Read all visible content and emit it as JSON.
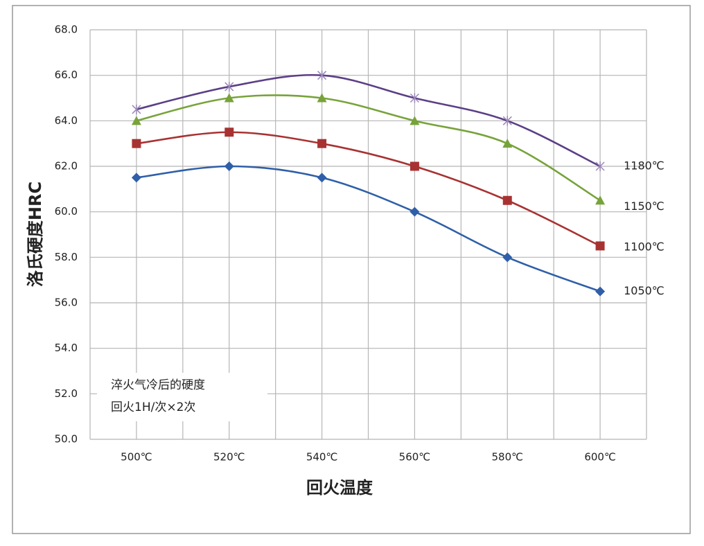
{
  "chart_data": {
    "type": "line",
    "y_label": "洛氏硬度HRC",
    "x_label": "回火温度",
    "annotation": [
      "淬火气冷后的硬度",
      "回火1H/次×2次"
    ],
    "categories": [
      "500℃",
      "520℃",
      "540℃",
      "560℃",
      "580℃",
      "600℃"
    ],
    "series": [
      {
        "name": "1180℃",
        "color": "#5b3f86",
        "marker": "star",
        "values": [
          64.5,
          65.5,
          66,
          65,
          64,
          62
        ]
      },
      {
        "name": "1150℃",
        "color": "#77a33a",
        "marker": "triangle",
        "values": [
          64,
          65,
          65,
          64,
          63,
          60.5
        ]
      },
      {
        "name": "1100℃",
        "color": "#a83232",
        "marker": "square",
        "values": [
          63,
          63.5,
          63,
          62,
          60.5,
          58.5
        ]
      },
      {
        "name": "1050℃",
        "color": "#2f5fa8",
        "marker": "diamond",
        "values": [
          61.5,
          62,
          61.5,
          60,
          58,
          56.5
        ]
      }
    ],
    "ylim": [
      50,
      68
    ],
    "yticks": [
      {
        "value": 50,
        "label": "50.0"
      },
      {
        "value": 52,
        "label": "52.0"
      },
      {
        "value": 54,
        "label": "54.0"
      },
      {
        "value": 56,
        "label": "56.0"
      },
      {
        "value": 58,
        "label": "58.0"
      },
      {
        "value": 60,
        "label": "60.0"
      },
      {
        "value": 62,
        "label": "62.0"
      },
      {
        "value": 64,
        "label": "64.0"
      },
      {
        "value": 66,
        "label": "66.0"
      },
      {
        "value": 68,
        "label": "68.0"
      }
    ],
    "grid": true
  }
}
